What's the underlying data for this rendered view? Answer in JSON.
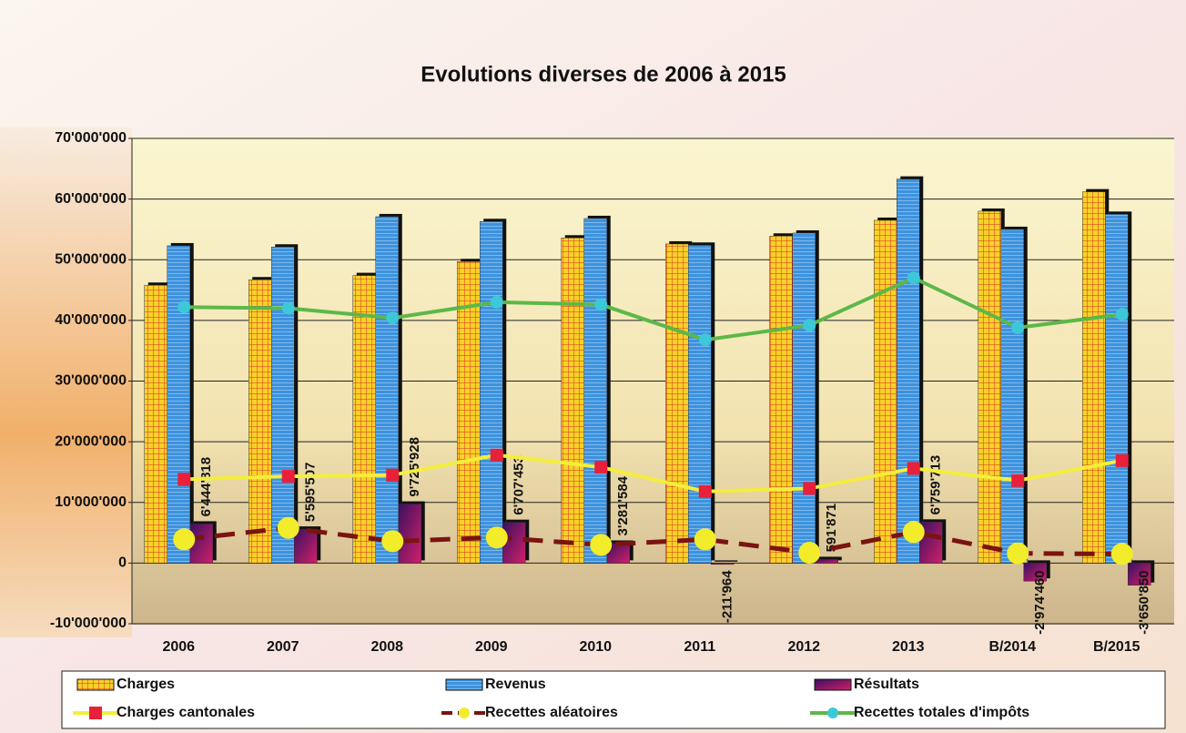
{
  "chart_data": {
    "type": "bar",
    "title": "Evolutions diverses de 2006 à 2015",
    "categories": [
      "2006",
      "2007",
      "2008",
      "2009",
      "2010",
      "2011",
      "2012",
      "2013",
      "B/2014",
      "B/2015"
    ],
    "ylim": [
      -10000000,
      70000000
    ],
    "yticks": [
      {
        "value": -10000000,
        "label": "-10'000'000"
      },
      0,
      {
        "value": 10000000,
        "label": "10'000'000"
      },
      {
        "value": 20000000,
        "label": "20'000'000"
      },
      {
        "value": 30000000,
        "label": "30'000'000"
      },
      {
        "value": 40000000,
        "label": "40'000'000"
      },
      {
        "value": 50000000,
        "label": "50'000'000"
      },
      {
        "value": 60000000,
        "label": "60'000'000"
      },
      {
        "value": 70000000,
        "label": "70'000'000"
      }
    ],
    "grid": true,
    "legend": "bottom",
    "series": [
      {
        "name": "Charges",
        "type": "bar",
        "color": "#f7d12a",
        "pattern": "grid",
        "values": [
          45800000,
          46700000,
          47400000,
          49700000,
          53600000,
          52600000,
          53900000,
          56500000,
          58000000,
          61200000
        ]
      },
      {
        "name": "Revenus",
        "type": "bar",
        "color": "#3d92dc",
        "pattern": "stripes",
        "values": [
          52300000,
          52100000,
          57100000,
          56300000,
          56800000,
          52400000,
          54400000,
          63300000,
          55000000,
          57500000
        ]
      },
      {
        "name": "Résultats",
        "type": "bar",
        "color": "#5b1b6e",
        "pattern": "gradient",
        "values": [
          6444818,
          5595507,
          9725928,
          6707453,
          3281584,
          -211964,
          591871,
          6759713,
          -2974460,
          -3650850
        ],
        "value_labels": [
          "6'444'818",
          "5'595'507",
          "9'725'928",
          "6'707'453",
          "3'281'584",
          "-211'964",
          "591'871",
          "6'759'713",
          "-2'974'460",
          "-3'650'850"
        ],
        "label_colors": {
          "positive": "#111111",
          "negative": "#e02020"
        }
      },
      {
        "name": "Charges cantonales",
        "type": "line",
        "color": "#f4ee3c",
        "marker": "square",
        "marker_color": "#e8203a",
        "dashed": false,
        "values": [
          13800000,
          14300000,
          14500000,
          17800000,
          15800000,
          11800000,
          12300000,
          15600000,
          13600000,
          16900000
        ]
      },
      {
        "name": "Recettes aléatoires",
        "type": "line",
        "color": "#7a1410",
        "marker": "circle",
        "marker_color": "#f2ec2a",
        "dashed": true,
        "values": [
          3900000,
          5800000,
          3600000,
          4200000,
          3000000,
          3900000,
          1700000,
          5100000,
          1600000,
          1500000
        ]
      },
      {
        "name": "Recettes totales d'impôts",
        "type": "line",
        "color": "#5cb848",
        "marker": "circle-small",
        "marker_color": "#3cc8d8",
        "dashed": false,
        "values": [
          42200000,
          42000000,
          40400000,
          43000000,
          42600000,
          36800000,
          39200000,
          47000000,
          38800000,
          41000000
        ]
      }
    ]
  }
}
